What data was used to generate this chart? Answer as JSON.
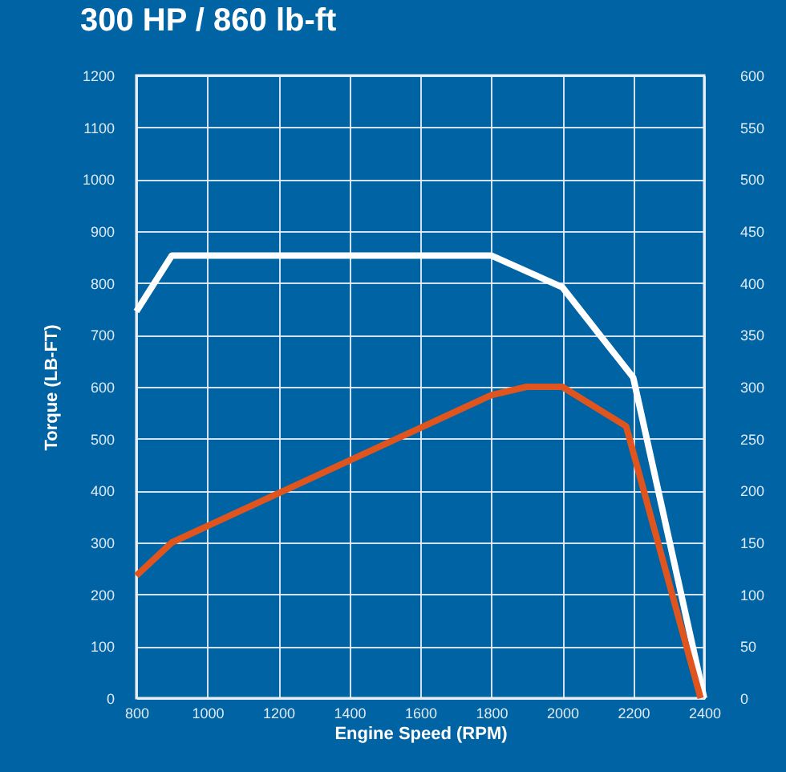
{
  "chart_data": {
    "type": "line",
    "title": "300 HP / 860 lb-ft",
    "xlabel": "Engine Speed (RPM)",
    "ylabel": "Torque (LB-FT)",
    "xlim": [
      800,
      2400
    ],
    "xticks": [
      800,
      1000,
      1200,
      1400,
      1600,
      1800,
      2000,
      2200,
      2400
    ],
    "ylim": [
      0,
      1200
    ],
    "yticks": [
      0,
      100,
      200,
      300,
      400,
      500,
      600,
      700,
      800,
      900,
      1000,
      1100,
      1200
    ],
    "y2lim": [
      0,
      600
    ],
    "y2ticks": [
      0,
      50,
      100,
      150,
      200,
      250,
      300,
      350,
      400,
      450,
      500,
      550,
      600
    ],
    "grid": true,
    "line_style": "solid",
    "series": [
      {
        "color": "#ffffff",
        "x": [
          800,
          900,
          1800,
          2000,
          2200,
          2400
        ],
        "values": [
          745,
          853,
          853,
          792,
          618,
          0
        ]
      },
      {
        "color": "#e0541e",
        "axis": "y2",
        "x": [
          800,
          900,
          1800,
          1900,
          2000,
          2180,
          2390
        ],
        "values": [
          118,
          150,
          292,
          300,
          300,
          262,
          0
        ]
      }
    ]
  }
}
